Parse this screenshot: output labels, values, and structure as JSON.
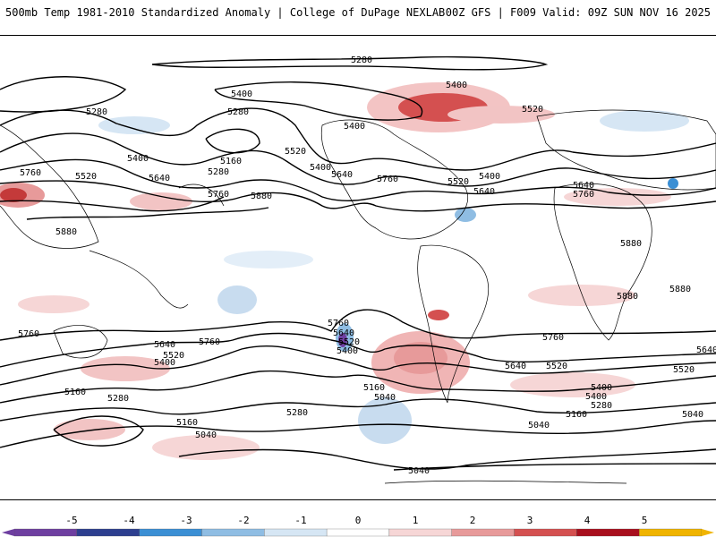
{
  "header": {
    "title_left": "500mb Temp 1981-2010 Standardized Anomaly | College of DuPage NEXLAB",
    "title_right": "00Z GFS | F009 Valid: 09Z SUN NOV 16 2025"
  },
  "map": {
    "contour_units": "dam",
    "contour_labels": [
      "5280",
      "5400",
      "5400",
      "5280",
      "5280",
      "5400",
      "5160",
      "5400",
      "5280",
      "5520",
      "5640",
      "5640",
      "5520",
      "5760",
      "5880",
      "5760",
      "5880",
      "5400",
      "5520",
      "5400",
      "5640",
      "5520",
      "5640",
      "5760",
      "5760",
      "5880",
      "5880",
      "5880",
      "5760",
      "5760",
      "5640",
      "5400",
      "5520",
      "5760",
      "5640",
      "5520",
      "5400",
      "5160",
      "5280",
      "5160",
      "5040",
      "5280",
      "5160",
      "5040",
      "5760",
      "5640",
      "5520",
      "5400",
      "5640",
      "5520",
      "5400",
      "5280",
      "5160",
      "5040",
      "5040",
      "5040"
    ]
  },
  "colorbar": {
    "ticks": [
      "-5",
      "-4",
      "-3",
      "-2",
      "-1",
      "0",
      "1",
      "2",
      "3",
      "4",
      "5"
    ],
    "colors": [
      "#6e3fa0",
      "#2d3f8f",
      "#3b8fd4",
      "#8fbde3",
      "#d6e6f4",
      "#ffffff",
      "#f6d6d6",
      "#e79a9a",
      "#d45050",
      "#a80f1e",
      "#f0b400"
    ]
  }
}
